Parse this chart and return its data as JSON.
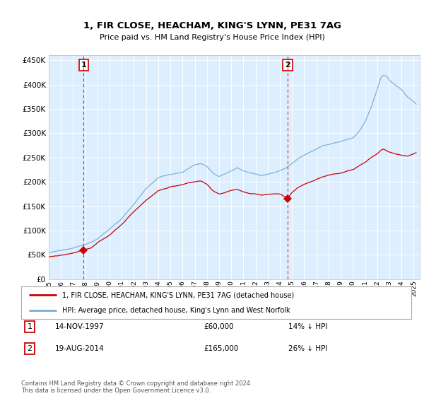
{
  "title": "1, FIR CLOSE, HEACHAM, KING'S LYNN, PE31 7AG",
  "subtitle": "Price paid vs. HM Land Registry's House Price Index (HPI)",
  "ylim": [
    0,
    460000
  ],
  "yticks": [
    0,
    50000,
    100000,
    150000,
    200000,
    250000,
    300000,
    350000,
    400000,
    450000
  ],
  "transaction1_date": 1997.87,
  "transaction1_price": 60000,
  "transaction1_label": "1",
  "transaction2_date": 2014.63,
  "transaction2_price": 165000,
  "transaction2_label": "2",
  "legend_line1": "1, FIR CLOSE, HEACHAM, KING'S LYNN, PE31 7AG (detached house)",
  "legend_line2": "HPI: Average price, detached house, King's Lynn and West Norfolk",
  "note1_label": "1",
  "note1_date": "14-NOV-1997",
  "note1_price": "£60,000",
  "note1_pct": "14% ↓ HPI",
  "note2_label": "2",
  "note2_date": "19-AUG-2014",
  "note2_price": "£165,000",
  "note2_pct": "26% ↓ HPI",
  "footnote": "Contains HM Land Registry data © Crown copyright and database right 2024.\nThis data is licensed under the Open Government Licence v3.0.",
  "hpi_color": "#7aadd4",
  "price_color": "#cc0000",
  "marker_color": "#cc0000",
  "dashed_line_color": "#cc0000",
  "chart_bg_color": "#ddeeff",
  "background_color": "#ffffff",
  "grid_color": "#ffffff"
}
